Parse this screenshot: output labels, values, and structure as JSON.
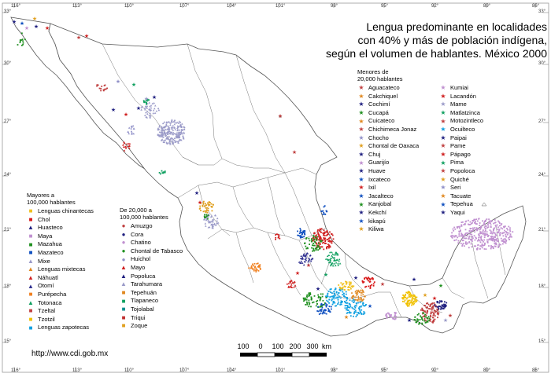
{
  "title": {
    "line1": "Lengua predominante en localidades",
    "line2": "con 40% y más de población indígena,",
    "line3": "según el volumen de hablantes. México 2000"
  },
  "url": "http://www.cdi.gob.mx",
  "scale": {
    "labels": [
      "100",
      "0",
      "100",
      "200",
      "300"
    ],
    "unit": "km"
  },
  "lat_labels": [
    "33°",
    "30°",
    "27°",
    "24°",
    "21°",
    "18°",
    "15°"
  ],
  "lon_labels": [
    "116°",
    "113°",
    "110°",
    "107°",
    "104°",
    "101°",
    "98°",
    "95°",
    "92°",
    "89°",
    "86°"
  ],
  "legend_large": {
    "header": "Mayores a\n100,000 hablantes",
    "items": [
      {
        "label": "Lenguas chinantecas",
        "color": "#f0c020",
        "symbol": "square"
      },
      {
        "label": "Chol",
        "color": "#d81818",
        "symbol": "square"
      },
      {
        "label": "Huasteco",
        "color": "#202080",
        "symbol": "triangle"
      },
      {
        "label": "Maya",
        "color": "#c090d0",
        "symbol": "square"
      },
      {
        "label": "Mazahua",
        "color": "#209020",
        "symbol": "square"
      },
      {
        "label": "Mazateco",
        "color": "#1050c0",
        "symbol": "square"
      },
      {
        "label": "Mixe",
        "color": "#9a9ac8",
        "symbol": "triangle"
      },
      {
        "label": "Lenguas mixtecas",
        "color": "#e08820",
        "symbol": "triangle"
      },
      {
        "label": "Náhuatl",
        "color": "#d02020",
        "symbol": "triangle"
      },
      {
        "label": "Otomí",
        "color": "#303090",
        "symbol": "triangle"
      },
      {
        "label": "Purépecha",
        "color": "#f08020",
        "symbol": "square"
      },
      {
        "label": "Totonaca",
        "color": "#10a060",
        "symbol": "triangle"
      },
      {
        "label": "Tzeltal",
        "color": "#c04040",
        "symbol": "square"
      },
      {
        "label": "Tzotzil",
        "color": "#f0c000",
        "symbol": "square"
      },
      {
        "label": "Lenguas zapotecas",
        "color": "#10a0e0",
        "symbol": "square"
      }
    ]
  },
  "legend_medium": {
    "header": "De 20,000 a\n100,000 hablantes",
    "items": [
      {
        "label": "Amuzgo",
        "color": "#c04040",
        "symbol": "circle"
      },
      {
        "label": "Cora",
        "color": "#202080",
        "symbol": "circle"
      },
      {
        "label": "Chatino",
        "color": "#c090d0",
        "symbol": "circle"
      },
      {
        "label": "Chontal de Tabasco",
        "color": "#209020",
        "symbol": "circle"
      },
      {
        "label": "Huichol",
        "color": "#9090c8",
        "symbol": "circle"
      },
      {
        "label": "Mayo",
        "color": "#d02020",
        "symbol": "triangle"
      },
      {
        "label": "Popoluca",
        "color": "#202080",
        "symbol": "triangle"
      },
      {
        "label": "Tarahumara",
        "color": "#9a9ac8",
        "symbol": "triangle"
      },
      {
        "label": "Tepehuán",
        "color": "#e08820",
        "symbol": "square"
      },
      {
        "label": "Tlapaneco",
        "color": "#10a060",
        "symbol": "square"
      },
      {
        "label": "Tojolabal",
        "color": "#109090",
        "symbol": "square"
      },
      {
        "label": "Triqui",
        "color": "#c03030",
        "symbol": "square"
      },
      {
        "label": "Zoque",
        "color": "#e0a020",
        "symbol": "square"
      }
    ]
  },
  "legend_small": {
    "header": "Menores de\n20,000 hablantes",
    "col1": [
      {
        "label": "Aguacateco",
        "color": "#c04040"
      },
      {
        "label": "Cakchiquel",
        "color": "#e08820"
      },
      {
        "label": "Cochimí",
        "color": "#202080"
      },
      {
        "label": "Cucapá",
        "color": "#209020"
      },
      {
        "label": "Cuicateco",
        "color": "#e08820"
      },
      {
        "label": "Chichimeca Jonaz",
        "color": "#c04040"
      },
      {
        "label": "Chocho",
        "color": "#9090c8"
      },
      {
        "label": "Chontal de Oaxaca",
        "color": "#e0a020"
      },
      {
        "label": "Chuj",
        "color": "#202080"
      },
      {
        "label": "Guarijío",
        "color": "#c090d0"
      },
      {
        "label": "Huave",
        "color": "#202080"
      },
      {
        "label": "Ixcateco",
        "color": "#1050c0"
      },
      {
        "label": "Ixil",
        "color": "#d02020"
      },
      {
        "label": "Jacalteco",
        "color": "#1050c0"
      },
      {
        "label": "Kanjobal",
        "color": "#209020"
      },
      {
        "label": "Kekchí",
        "color": "#202080"
      },
      {
        "label": "kikapú",
        "color": "#1050c0"
      },
      {
        "label": "Kiliwa",
        "color": "#e0a020"
      }
    ],
    "col2": [
      {
        "label": "Kumiai",
        "color": "#c090d0"
      },
      {
        "label": "Lacandón",
        "color": "#d02020"
      },
      {
        "label": "Mame",
        "color": "#9a9ac8"
      },
      {
        "label": "Matlatzinca",
        "color": "#10a060"
      },
      {
        "label": "Motozintleco",
        "color": "#c04040"
      },
      {
        "label": "Ocuilteco",
        "color": "#10a0e0"
      },
      {
        "label": "Paipai",
        "color": "#202080"
      },
      {
        "label": "Pame",
        "color": "#c04040"
      },
      {
        "label": "Pápago",
        "color": "#d02020"
      },
      {
        "label": "Pima",
        "color": "#10a060"
      },
      {
        "label": "Popoloca",
        "color": "#c04040"
      },
      {
        "label": "Quiché",
        "color": "#e0a020"
      },
      {
        "label": "Seri",
        "color": "#9090c8"
      },
      {
        "label": "Tacuate",
        "color": "#e08820"
      },
      {
        "label": "Tepehua",
        "color": "#1050c0"
      },
      {
        "label": "Yaqui",
        "color": "#202080"
      }
    ]
  }
}
